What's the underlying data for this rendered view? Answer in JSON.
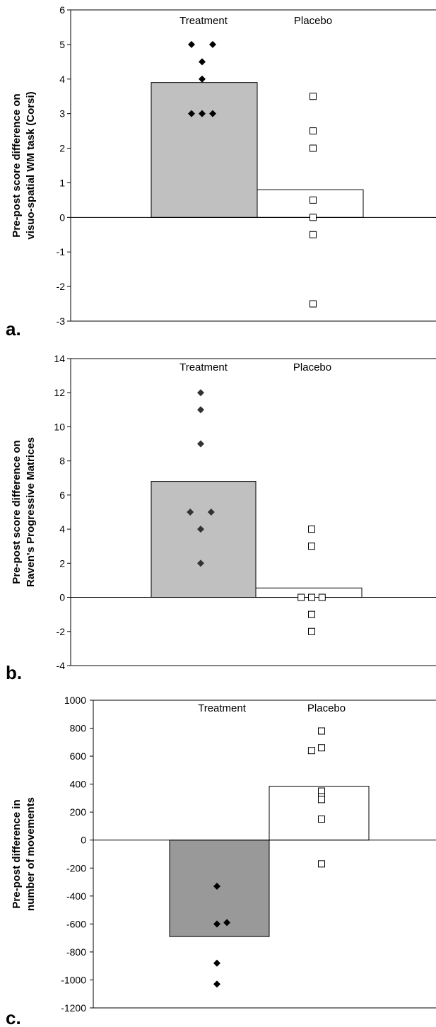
{
  "chart_data": [
    {
      "type": "bar",
      "panel_label": "a.",
      "categories": [
        "Treatment",
        "Placebo"
      ],
      "values": [
        3.9,
        0.8
      ],
      "bar_colors": [
        "#c0c0c0",
        "#ffffff"
      ],
      "ylabel_lines": [
        "Pre-post score difference on",
        "visuo-spatial WM task (Corsi)"
      ],
      "ylim": [
        -3,
        6
      ],
      "yticks": [
        "6",
        "5",
        "4",
        "3",
        "2",
        "1",
        "0",
        "-1",
        "-2",
        "-3"
      ],
      "points": {
        "Treatment": [
          [
            -0.1,
            5
          ],
          [
            0.1,
            5
          ],
          [
            0,
            4.5
          ],
          [
            0,
            4
          ],
          [
            -0.1,
            3
          ],
          [
            0,
            3
          ],
          [
            0.1,
            3
          ]
        ],
        "Placebo": [
          [
            0,
            3.5
          ],
          [
            0,
            2.5
          ],
          [
            0,
            2
          ],
          [
            0,
            0.5
          ],
          [
            0,
            0
          ],
          [
            0,
            -0.5
          ],
          [
            0,
            -2.5
          ]
        ]
      },
      "marker_colors": {
        "Treatment": "#000000",
        "Placebo": "#000000"
      }
    },
    {
      "type": "bar",
      "panel_label": "b.",
      "categories": [
        "Treatment",
        "Placebo"
      ],
      "values": [
        6.8,
        0.55
      ],
      "bar_colors": [
        "#c0c0c0",
        "#ffffff"
      ],
      "ylabel_lines": [
        "Pre-post score difference on",
        "Raven's Progressive Matrices"
      ],
      "ylim": [
        -4,
        14
      ],
      "yticks": [
        "14",
        "12",
        "10",
        "8",
        "6",
        "4",
        "2",
        "0",
        "-2",
        "-4"
      ],
      "points": {
        "Treatment": [
          [
            0,
            12
          ],
          [
            0,
            11
          ],
          [
            0,
            9
          ],
          [
            -0.1,
            5
          ],
          [
            0.1,
            5
          ],
          [
            0,
            4
          ],
          [
            0,
            2
          ]
        ],
        "Placebo": [
          [
            0,
            4
          ],
          [
            0,
            3
          ],
          [
            -0.1,
            0
          ],
          [
            0,
            0
          ],
          [
            0.1,
            0
          ],
          [
            0,
            -1
          ],
          [
            0,
            -2
          ]
        ]
      },
      "marker_colors": {
        "Treatment": "#333333",
        "Placebo": "#000000"
      }
    },
    {
      "type": "bar",
      "panel_label": "c.",
      "categories": [
        "Treatment",
        "Placebo"
      ],
      "values": [
        -690,
        385
      ],
      "bar_colors": [
        "#999999",
        "#ffffff"
      ],
      "ylabel_lines": [
        "Pre-post difference in",
        "number of movements"
      ],
      "ylim": [
        -1200,
        1000
      ],
      "yticks": [
        "1000",
        "800",
        "600",
        "400",
        "200",
        "0",
        "-200",
        "-400",
        "-600",
        "-800",
        "-1000",
        "-1200"
      ],
      "points": {
        "Treatment": [
          [
            0,
            -330
          ],
          [
            0,
            -600
          ],
          [
            0.1,
            -590
          ],
          [
            0,
            -880
          ],
          [
            0,
            -1030
          ]
        ],
        "Placebo": [
          [
            0,
            780
          ],
          [
            -0.1,
            640
          ],
          [
            0,
            660
          ],
          [
            0,
            350
          ],
          [
            0,
            310
          ],
          [
            0,
            290
          ],
          [
            0,
            150
          ],
          [
            0,
            -170
          ]
        ]
      },
      "marker_colors": {
        "Treatment": "#000000",
        "Placebo": "#000000"
      }
    }
  ]
}
